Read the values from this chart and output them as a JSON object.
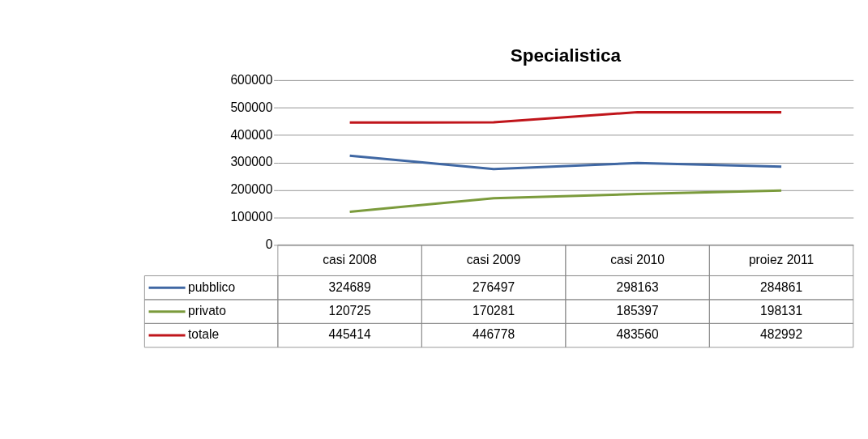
{
  "chart_data": {
    "type": "line",
    "title": "Specialistica",
    "categories": [
      "casi 2008",
      "casi 2009",
      "casi 2010",
      "proiez 2011"
    ],
    "series": [
      {
        "name": "pubblico",
        "color": "#3f67a3",
        "values": [
          324689,
          276497,
          298163,
          284861
        ]
      },
      {
        "name": "privato",
        "color": "#7b9b3c",
        "values": [
          120725,
          170281,
          185397,
          198131
        ]
      },
      {
        "name": "totale",
        "color": "#c0151b",
        "values": [
          445414,
          446778,
          483560,
          482992
        ]
      }
    ],
    "ylim": [
      0,
      600000
    ],
    "yticks": [
      0,
      100000,
      200000,
      300000,
      400000,
      500000,
      600000
    ],
    "grid": "y",
    "legend": "bottom",
    "data_labels": true,
    "marker": "none",
    "line_style": "solid"
  }
}
